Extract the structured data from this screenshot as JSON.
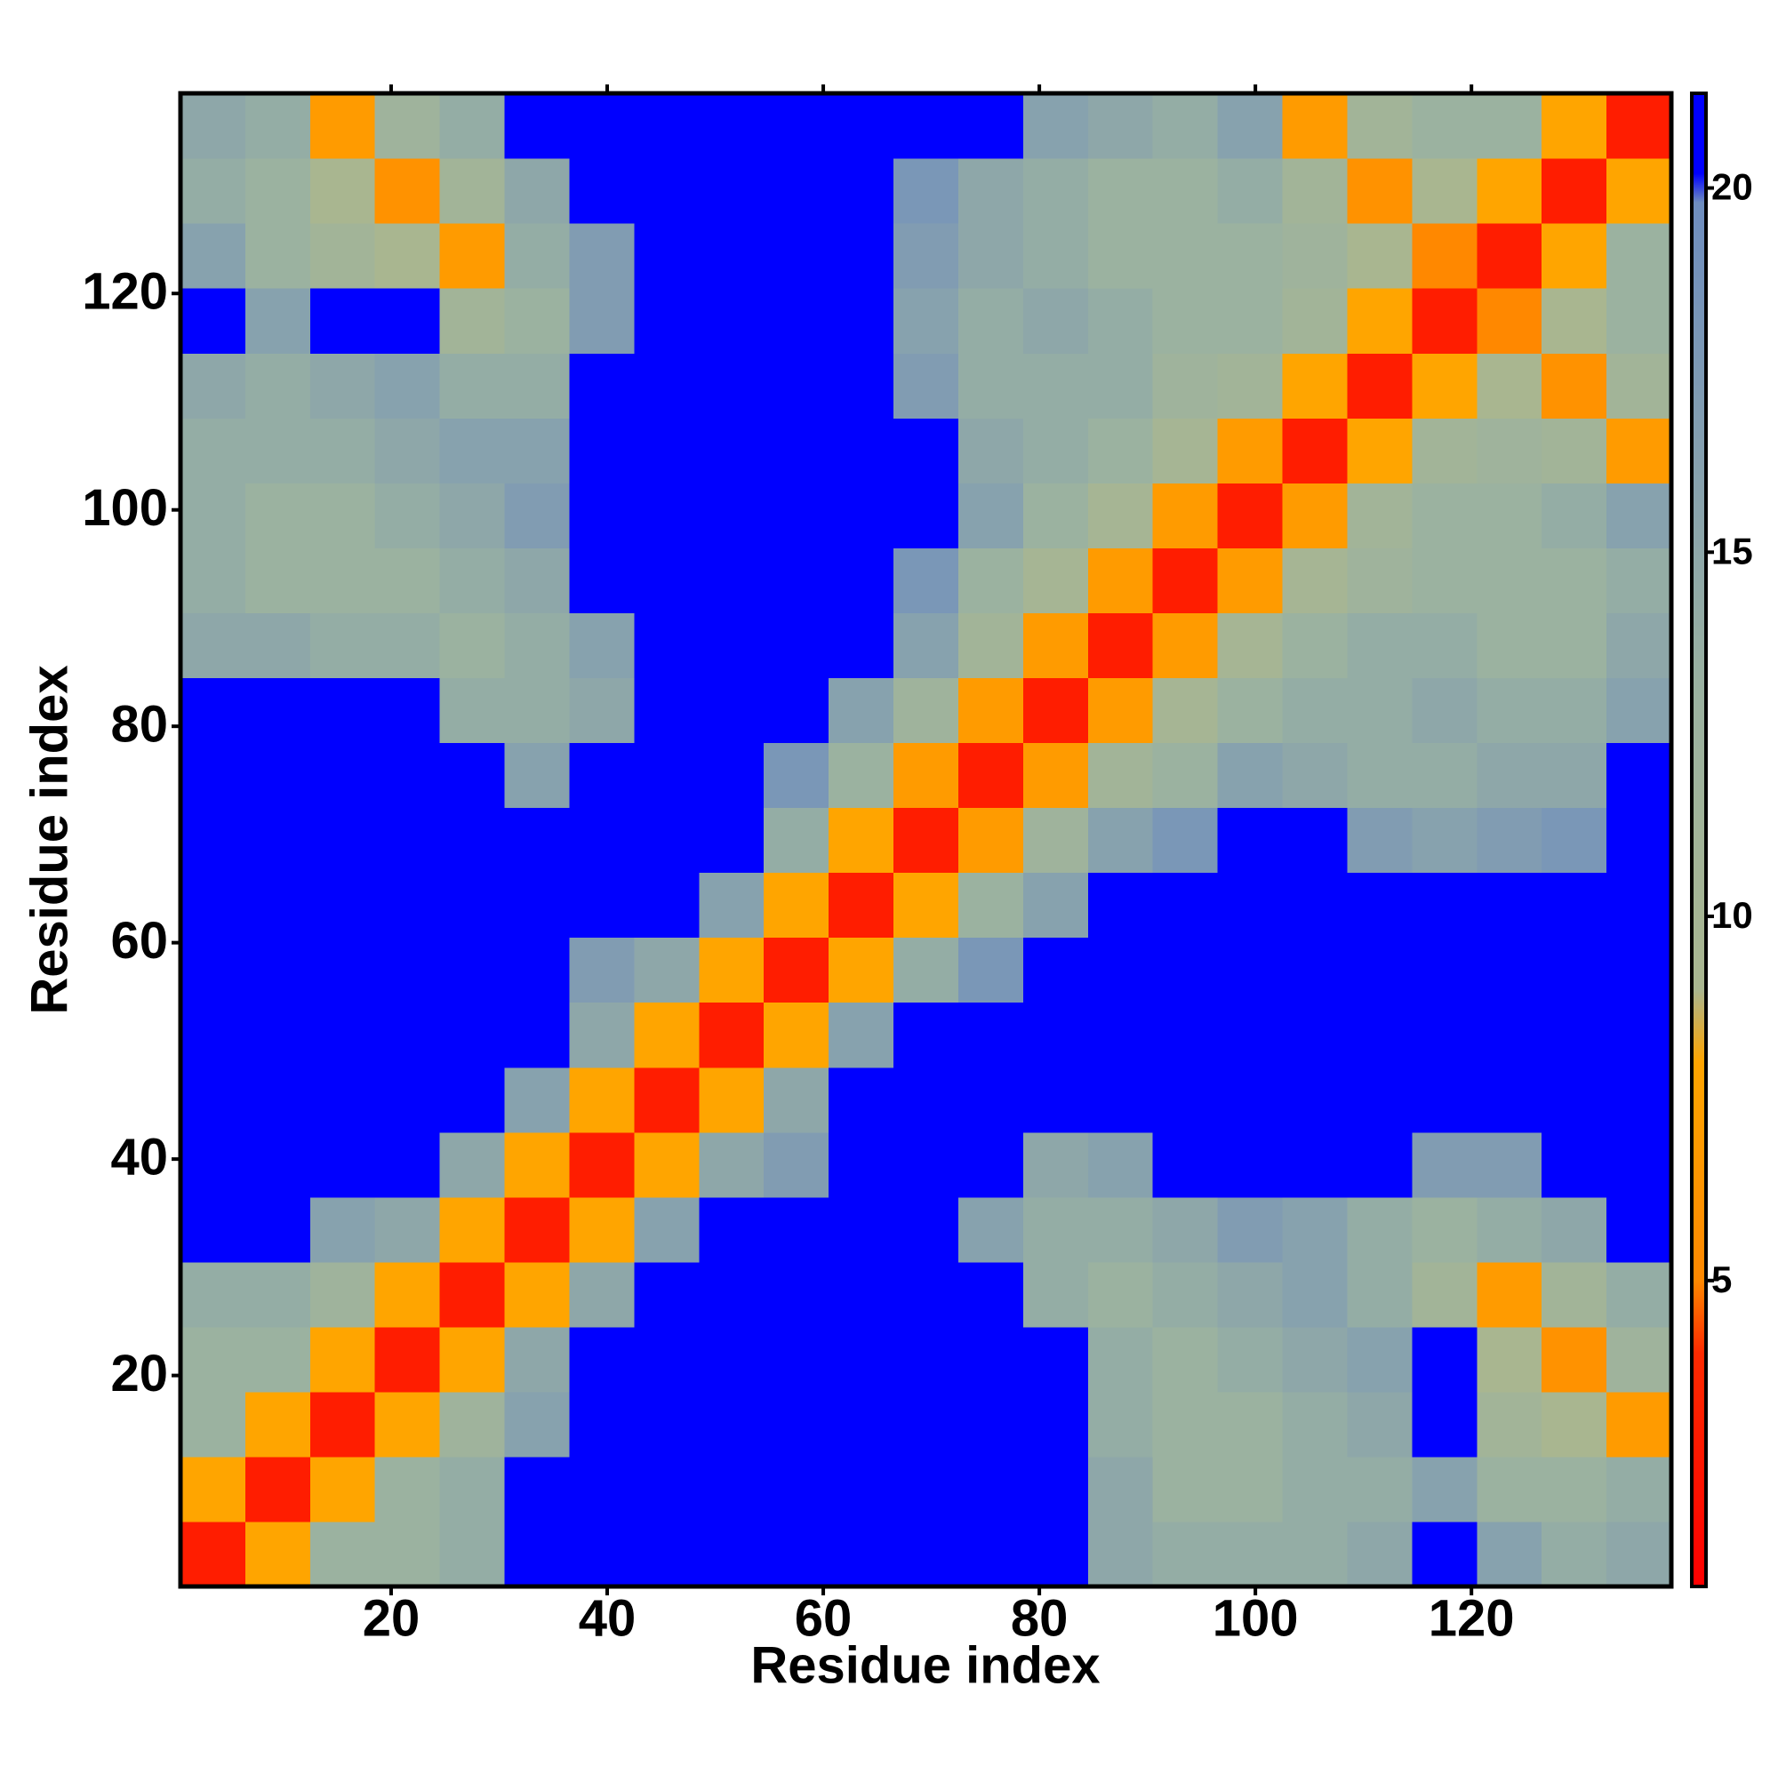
{
  "chart_data": {
    "type": "heatmap",
    "xlabel": "Residue index",
    "ylabel": "Residue index",
    "x": [
      3.5,
      9.5,
      15.5,
      21.5,
      27.5,
      33.5,
      39.5,
      45.5,
      51.5,
      57.5,
      63.5,
      69.5,
      75.5,
      81.5,
      87.5,
      93.5,
      99.5,
      105.5,
      111.5,
      117.5,
      123.5,
      129.5,
      135.5
    ],
    "y": [
      3.5,
      9.5,
      15.5,
      21.5,
      27.5,
      33.5,
      39.5,
      45.5,
      51.5,
      57.5,
      63.5,
      69.5,
      75.5,
      81.5,
      87.5,
      93.5,
      99.5,
      105.5,
      111.5,
      117.5,
      123.5,
      129.5,
      135.5
    ],
    "z": [
      [
        3,
        8,
        13,
        13,
        14,
        21,
        21,
        21,
        21,
        21,
        21,
        21,
        21,
        21,
        15,
        14,
        14,
        14,
        15,
        21,
        16,
        14,
        15
      ],
      [
        8,
        3,
        8,
        13,
        14,
        21,
        21,
        21,
        21,
        21,
        21,
        21,
        21,
        21,
        15,
        13,
        13,
        14,
        14,
        16,
        13,
        13,
        14
      ],
      [
        13,
        8,
        3,
        8,
        12,
        16,
        21,
        21,
        21,
        21,
        21,
        21,
        21,
        21,
        14,
        13,
        13,
        14,
        15,
        21,
        11,
        9,
        7
      ],
      [
        13,
        13,
        8,
        3,
        8,
        15,
        21,
        21,
        21,
        21,
        21,
        21,
        21,
        21,
        14,
        13,
        14,
        15,
        16,
        21,
        9,
        6,
        12
      ],
      [
        14,
        14,
        12,
        8,
        3,
        8,
        15,
        21,
        21,
        21,
        21,
        21,
        21,
        14,
        13,
        14,
        15,
        16,
        14,
        11,
        7,
        11,
        14
      ],
      [
        21,
        21,
        16,
        15,
        8,
        3,
        8,
        16,
        21,
        21,
        21,
        21,
        16,
        14,
        14,
        15,
        17,
        16,
        14,
        13,
        14,
        15,
        21
      ],
      [
        21,
        21,
        21,
        21,
        15,
        8,
        3,
        8,
        15,
        17,
        21,
        21,
        21,
        15,
        16,
        21,
        21,
        21,
        21,
        17,
        17,
        21,
        21
      ],
      [
        21,
        21,
        21,
        21,
        21,
        16,
        8,
        3,
        8,
        15,
        21,
        21,
        21,
        21,
        21,
        21,
        21,
        21,
        21,
        21,
        21,
        21,
        21
      ],
      [
        21,
        21,
        21,
        21,
        21,
        21,
        15,
        8,
        3,
        8,
        16,
        21,
        21,
        21,
        21,
        21,
        21,
        21,
        21,
        21,
        21,
        21,
        21
      ],
      [
        21,
        21,
        21,
        21,
        21,
        21,
        17,
        15,
        8,
        3,
        8,
        14,
        18,
        21,
        21,
        21,
        21,
        21,
        21,
        21,
        21,
        21,
        21
      ],
      [
        21,
        21,
        21,
        21,
        21,
        21,
        21,
        21,
        16,
        8,
        3,
        8,
        13,
        16,
        21,
        21,
        21,
        21,
        21,
        21,
        21,
        21,
        21
      ],
      [
        21,
        21,
        21,
        21,
        21,
        21,
        21,
        21,
        21,
        14,
        8,
        3,
        7,
        12,
        16,
        18,
        21,
        21,
        17,
        16,
        17,
        18,
        21
      ],
      [
        21,
        21,
        21,
        21,
        21,
        16,
        21,
        21,
        21,
        18,
        13,
        7,
        3,
        7,
        11,
        13,
        16,
        15,
        14,
        14,
        15,
        15,
        21
      ],
      [
        21,
        21,
        21,
        21,
        14,
        14,
        15,
        21,
        21,
        21,
        16,
        12,
        7,
        3,
        7,
        10,
        13,
        14,
        14,
        15,
        14,
        14,
        16
      ],
      [
        15,
        15,
        14,
        14,
        13,
        14,
        16,
        21,
        21,
        21,
        21,
        16,
        11,
        7,
        3,
        7,
        10,
        13,
        14,
        14,
        13,
        13,
        15
      ],
      [
        14,
        13,
        13,
        13,
        14,
        15,
        21,
        21,
        21,
        21,
        21,
        18,
        13,
        10,
        7,
        3,
        7,
        10,
        12,
        13,
        13,
        13,
        14
      ],
      [
        14,
        13,
        13,
        14,
        15,
        17,
        21,
        21,
        21,
        21,
        21,
        21,
        16,
        13,
        10,
        7,
        3,
        7,
        11,
        13,
        13,
        14,
        16
      ],
      [
        14,
        14,
        14,
        15,
        16,
        16,
        21,
        21,
        21,
        21,
        21,
        21,
        15,
        14,
        13,
        10,
        7,
        3,
        8,
        11,
        12,
        11,
        7
      ],
      [
        15,
        14,
        15,
        16,
        14,
        14,
        21,
        21,
        21,
        21,
        21,
        17,
        14,
        14,
        14,
        12,
        11,
        8,
        3,
        8,
        9,
        6,
        11
      ],
      [
        21,
        16,
        21,
        21,
        11,
        13,
        17,
        21,
        21,
        21,
        21,
        16,
        14,
        15,
        14,
        13,
        13,
        11,
        8,
        3,
        5,
        9,
        13
      ],
      [
        16,
        13,
        11,
        9,
        7,
        14,
        17,
        21,
        21,
        21,
        21,
        17,
        15,
        14,
        13,
        13,
        13,
        12,
        9,
        5,
        3,
        8,
        13
      ],
      [
        14,
        13,
        9,
        6,
        11,
        15,
        21,
        21,
        21,
        21,
        21,
        18,
        15,
        14,
        13,
        13,
        14,
        11,
        6,
        9,
        8,
        3,
        8
      ],
      [
        15,
        14,
        7,
        12,
        14,
        21,
        21,
        21,
        21,
        21,
        21,
        21,
        21,
        16,
        15,
        14,
        16,
        7,
        11,
        13,
        13,
        8,
        3
      ]
    ],
    "xlim": [
      0.5,
      138.5
    ],
    "ylim": [
      0.5,
      138.5
    ],
    "xticks": [
      20,
      40,
      60,
      80,
      100,
      120
    ],
    "yticks": [
      20,
      40,
      60,
      80,
      100,
      120
    ],
    "clim": [
      0.8,
      21.3
    ],
    "cticks": [
      5,
      10,
      15,
      20
    ],
    "colorscale": [
      [
        0.8,
        "#ff0000"
      ],
      [
        4,
        "#ff2a00"
      ],
      [
        5,
        "#ff8800"
      ],
      [
        8,
        "#ffa500"
      ],
      [
        9,
        "#a9b690"
      ],
      [
        13,
        "#9bb2a0"
      ],
      [
        19.8,
        "#6e8dbf"
      ],
      [
        20.2,
        "#0000ff"
      ],
      [
        21.3,
        "#0000ff"
      ]
    ]
  }
}
